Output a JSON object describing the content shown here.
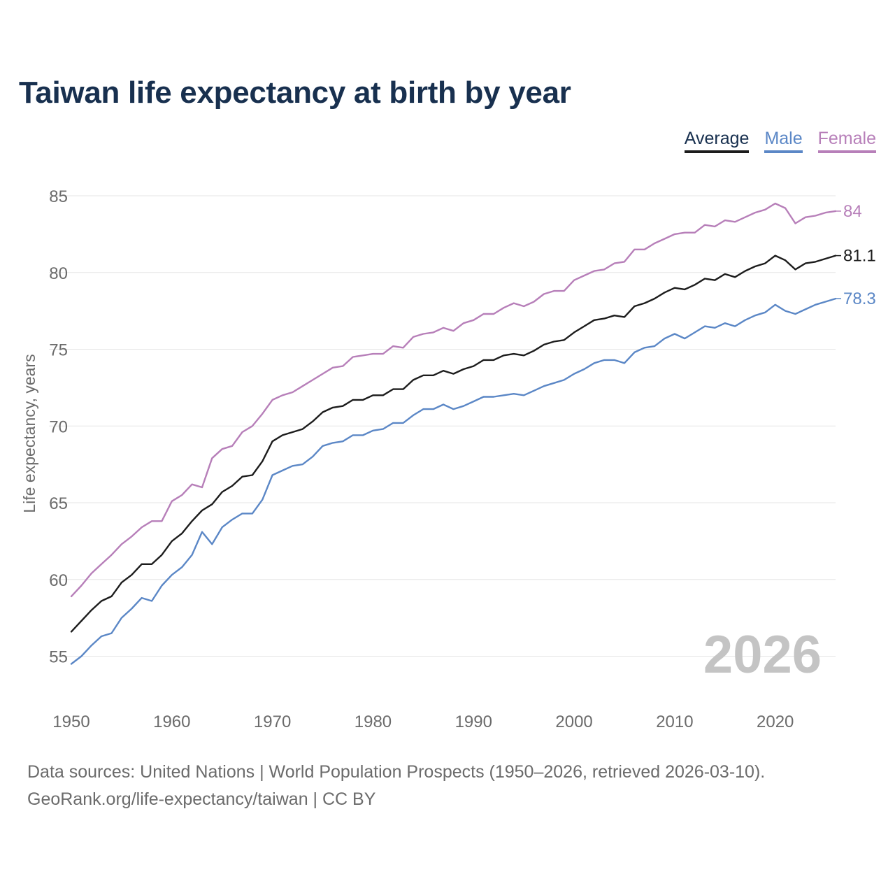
{
  "page": {
    "title": "Taiwan life expectancy at birth by year",
    "year_watermark": "2026",
    "source_line1": "Data sources: United Nations | World Population Prospects (1950–2026, retrieved 2026-03-10).",
    "source_line2": "GeoRank.org/life-expectancy/taiwan | CC BY"
  },
  "legend": [
    {
      "label": "Average",
      "color": "#1c1c1c"
    },
    {
      "label": "Male",
      "color": "#5b87c6"
    },
    {
      "label": "Female",
      "color": "#b77fb9"
    }
  ],
  "chart_data": {
    "type": "line",
    "title": "Taiwan life expectancy at birth by year",
    "xlabel": "",
    "ylabel": "Life expectancy, years",
    "xlim": [
      1950,
      2026
    ],
    "ylim": [
      53,
      86
    ],
    "x_ticks": [
      1950,
      1960,
      1970,
      1980,
      1990,
      2000,
      2010,
      2020
    ],
    "y_ticks": [
      55,
      60,
      65,
      70,
      75,
      80,
      85
    ],
    "grid": true,
    "series": [
      {
        "name": "Average",
        "color": "#1c1c1c",
        "end_label": "81.1",
        "values": [
          56.6,
          57.3,
          58.0,
          58.6,
          58.9,
          59.8,
          60.3,
          61.0,
          61.0,
          61.6,
          62.5,
          63.0,
          63.8,
          64.5,
          64.9,
          65.7,
          66.1,
          66.7,
          66.8,
          67.7,
          69.0,
          69.4,
          69.6,
          69.8,
          70.3,
          70.9,
          71.2,
          71.3,
          71.7,
          71.7,
          72.0,
          72.0,
          72.4,
          72.4,
          73.0,
          73.3,
          73.3,
          73.6,
          73.4,
          73.7,
          73.9,
          74.3,
          74.3,
          74.6,
          74.7,
          74.6,
          74.9,
          75.3,
          75.5,
          75.6,
          76.1,
          76.5,
          76.9,
          77.0,
          77.2,
          77.1,
          77.8,
          78.0,
          78.3,
          78.7,
          79.0,
          78.9,
          79.2,
          79.6,
          79.5,
          79.9,
          79.7,
          80.1,
          80.4,
          80.6,
          81.1,
          80.8,
          80.2,
          80.6,
          80.7,
          80.9,
          81.1
        ]
      },
      {
        "name": "Male",
        "color": "#5b87c6",
        "end_label": "78.3",
        "values": [
          54.5,
          55.0,
          55.7,
          56.3,
          56.5,
          57.5,
          58.1,
          58.8,
          58.6,
          59.6,
          60.3,
          60.8,
          61.6,
          63.1,
          62.3,
          63.4,
          63.9,
          64.3,
          64.3,
          65.2,
          66.8,
          67.1,
          67.4,
          67.5,
          68.0,
          68.7,
          68.9,
          69.0,
          69.4,
          69.4,
          69.7,
          69.8,
          70.2,
          70.2,
          70.7,
          71.1,
          71.1,
          71.4,
          71.1,
          71.3,
          71.6,
          71.9,
          71.9,
          72.0,
          72.1,
          72.0,
          72.3,
          72.6,
          72.8,
          73.0,
          73.4,
          73.7,
          74.1,
          74.3,
          74.3,
          74.1,
          74.8,
          75.1,
          75.2,
          75.7,
          76.0,
          75.7,
          76.1,
          76.5,
          76.4,
          76.7,
          76.5,
          76.9,
          77.2,
          77.4,
          77.9,
          77.5,
          77.3,
          77.6,
          77.9,
          78.1,
          78.3
        ]
      },
      {
        "name": "Female",
        "color": "#b77fb9",
        "end_label": "84",
        "values": [
          58.9,
          59.6,
          60.4,
          61.0,
          61.6,
          62.3,
          62.8,
          63.4,
          63.8,
          63.8,
          65.1,
          65.5,
          66.2,
          66.0,
          67.9,
          68.5,
          68.7,
          69.6,
          70.0,
          70.8,
          71.7,
          72.0,
          72.2,
          72.6,
          73.0,
          73.4,
          73.8,
          73.9,
          74.5,
          74.6,
          74.7,
          74.7,
          75.2,
          75.1,
          75.8,
          76.0,
          76.1,
          76.4,
          76.2,
          76.7,
          76.9,
          77.3,
          77.3,
          77.7,
          78.0,
          77.8,
          78.1,
          78.6,
          78.8,
          78.8,
          79.5,
          79.8,
          80.1,
          80.2,
          80.6,
          80.7,
          81.5,
          81.5,
          81.9,
          82.2,
          82.5,
          82.6,
          82.6,
          83.1,
          83.0,
          83.4,
          83.3,
          83.6,
          83.9,
          84.1,
          84.5,
          84.2,
          83.2,
          83.6,
          83.7,
          83.9,
          84.0
        ]
      }
    ]
  }
}
